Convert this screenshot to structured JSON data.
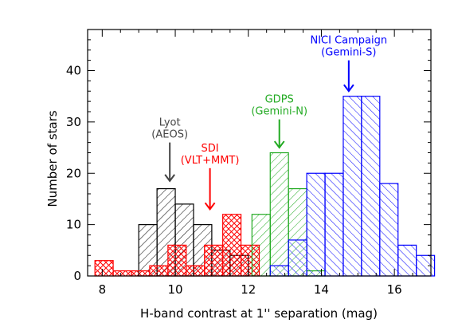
{
  "chart_data": {
    "type": "bar",
    "xlabel": "H-band contrast at 1'' separation (mag)",
    "ylabel": "Number of stars",
    "xlim": [
      7.6,
      17.0
    ],
    "ylim": [
      0,
      48
    ],
    "xticks": [
      8,
      10,
      12,
      14,
      16
    ],
    "yticks": [
      0,
      10,
      20,
      30,
      40
    ],
    "bin_width": 0.5,
    "series": [
      {
        "color": "#000000",
        "hatch": "forward",
        "bins": [
          {
            "x0": 9.0,
            "value": 10
          },
          {
            "x0": 9.5,
            "value": 17
          },
          {
            "x0": 10.0,
            "value": 14
          },
          {
            "x0": 10.5,
            "value": 10
          },
          {
            "x0": 11.0,
            "value": 5
          },
          {
            "x0": 11.5,
            "value": 4
          }
        ]
      },
      {
        "color": "#ff0000",
        "hatch": "cross",
        "bins": [
          {
            "x0": 7.8,
            "value": 3
          },
          {
            "x0": 8.3,
            "value": 1
          },
          {
            "x0": 8.8,
            "value": 1
          },
          {
            "x0": 9.3,
            "value": 2
          },
          {
            "x0": 9.8,
            "value": 6
          },
          {
            "x0": 10.3,
            "value": 2
          },
          {
            "x0": 10.8,
            "value": 6
          },
          {
            "x0": 11.3,
            "value": 12
          },
          {
            "x0": 11.8,
            "value": 6
          }
        ]
      },
      {
        "color": "#22aa22",
        "hatch": "forward",
        "bins": [
          {
            "x0": 12.1,
            "value": 12
          },
          {
            "x0": 12.6,
            "value": 24
          },
          {
            "x0": 13.1,
            "value": 17
          },
          {
            "x0": 13.6,
            "value": 1
          }
        ]
      },
      {
        "color": "#0000ff",
        "hatch": "backward",
        "bins": [
          {
            "x0": 12.6,
            "value": 2
          },
          {
            "x0": 13.1,
            "value": 7
          },
          {
            "x0": 13.6,
            "value": 20
          },
          {
            "x0": 14.1,
            "value": 20
          },
          {
            "x0": 14.6,
            "value": 35
          },
          {
            "x0": 15.1,
            "value": 35
          },
          {
            "x0": 15.6,
            "value": 18
          },
          {
            "x0": 16.1,
            "value": 6
          },
          {
            "x0": 16.6,
            "value": 4
          }
        ]
      }
    ],
    "annotations": [
      {
        "lines": [
          "Lyot",
          "(AEOS)"
        ],
        "color": "#444444",
        "x": 9.85,
        "arrow_top": 26,
        "arrow_tip": 18.5
      },
      {
        "lines": [
          "SDI",
          "(VLT+MMT)"
        ],
        "color": "#ff0000",
        "x": 10.95,
        "arrow_top": 21,
        "arrow_tip": 13
      },
      {
        "lines": [
          "GDPS",
          "(Gemini-N)"
        ],
        "color": "#22aa22",
        "x": 12.85,
        "arrow_top": 30.5,
        "arrow_tip": 25
      },
      {
        "lines": [
          "NICI Campaign",
          "(Gemini-S)"
        ],
        "color": "#0000ff",
        "x": 14.75,
        "arrow_top": 42,
        "arrow_tip": 36
      }
    ]
  }
}
